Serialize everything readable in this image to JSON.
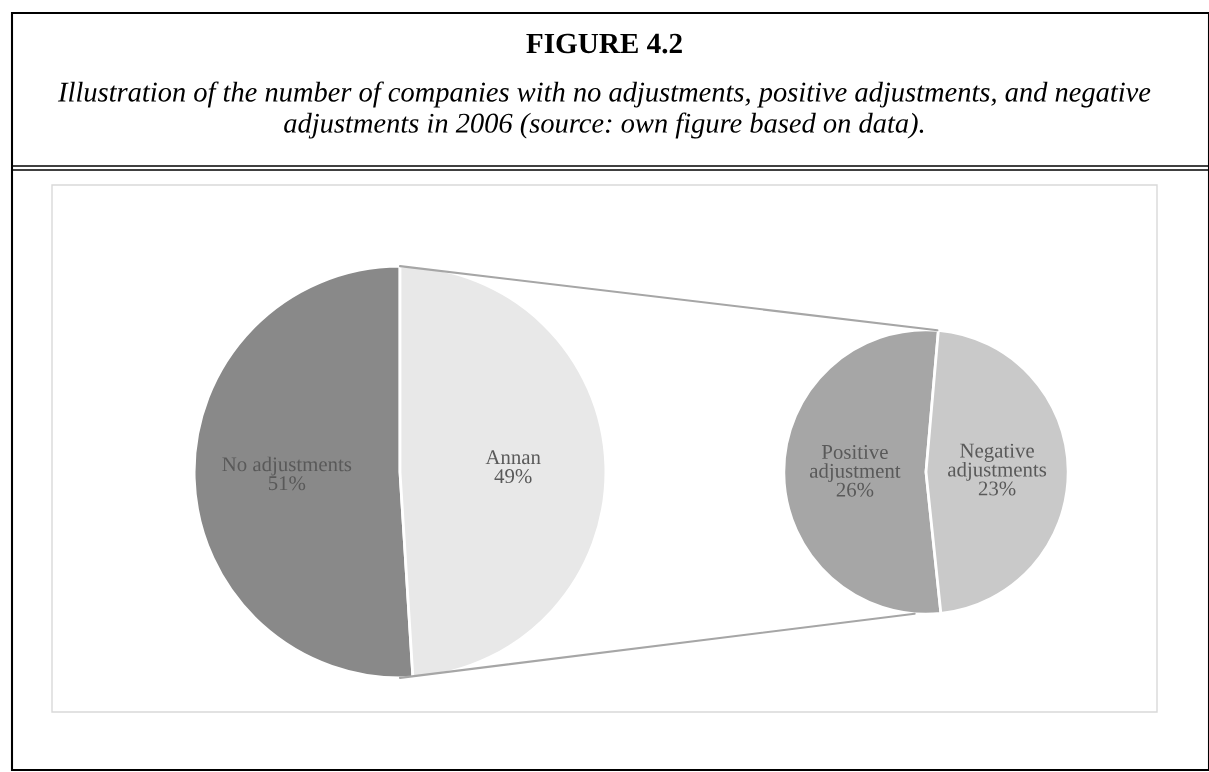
{
  "chart_data": [
    {
      "type": "pie",
      "title": "FIGURE 4.2",
      "subtitle": "Illustration of the number of companies with no adjustments, positive adjustments, and negative adjustments in 2006 (source: own figure based on data).",
      "categories": [
        "No adjustments",
        "Annan"
      ],
      "values": [
        51,
        49
      ],
      "value_labels": [
        "51%",
        "49%"
      ],
      "colors": [
        "#898989",
        "#e8e8e8"
      ]
    },
    {
      "type": "pie",
      "categories": [
        "Positive adjustment",
        "Negative adjustments"
      ],
      "values": [
        26,
        23
      ],
      "value_labels": [
        "26%",
        "23%"
      ],
      "colors": [
        "#a6a6a6",
        "#c9c9c9"
      ]
    }
  ]
}
